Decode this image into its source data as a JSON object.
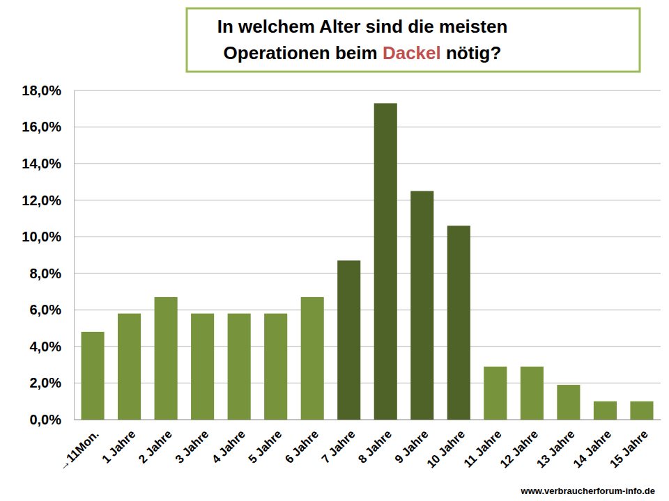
{
  "chart_data": {
    "type": "bar",
    "title": "In welchem Alter sind die meisten Operationen beim Dackel nötig?",
    "categories": [
      "→11Mon.",
      "1 Jahre",
      "2 Jahre",
      "3 Jahre",
      "4 Jahre",
      "5 Jahre",
      "6 Jahre",
      "7 Jahre",
      "8 Jahre",
      "9 Jahre",
      "10 Jahre",
      "11 Jahre",
      "12 Jahre",
      "13 Jahre",
      "14 Jahre",
      "15 Jahre"
    ],
    "values": [
      4.8,
      5.8,
      6.7,
      5.8,
      5.8,
      5.8,
      6.7,
      8.7,
      17.3,
      12.5,
      10.6,
      2.9,
      2.9,
      1.9,
      1.0,
      1.0
    ],
    "colors": [
      "#77933c",
      "#77933c",
      "#77933c",
      "#77933c",
      "#77933c",
      "#77933c",
      "#77933c",
      "#4f6228",
      "#4f6228",
      "#4f6228",
      "#4f6228",
      "#77933c",
      "#77933c",
      "#77933c",
      "#77933c",
      "#77933c"
    ],
    "ylim": [
      0,
      18
    ],
    "yticks": [
      {
        "value": 0,
        "label": "0,0%"
      },
      {
        "value": 2,
        "label": "2,0%"
      },
      {
        "value": 4,
        "label": "4,0%"
      },
      {
        "value": 6,
        "label": "6,0%"
      },
      {
        "value": 8,
        "label": "8,0%"
      },
      {
        "value": 10,
        "label": "10,0%"
      },
      {
        "value": 12,
        "label": "12,0%"
      },
      {
        "value": 14,
        "label": "14,0%"
      },
      {
        "value": 16,
        "label": "16,0%"
      },
      {
        "value": 18,
        "label": "18,0%"
      }
    ],
    "grid": true,
    "annotations": [
      "www.verbraucherforum-info.de"
    ]
  }
}
